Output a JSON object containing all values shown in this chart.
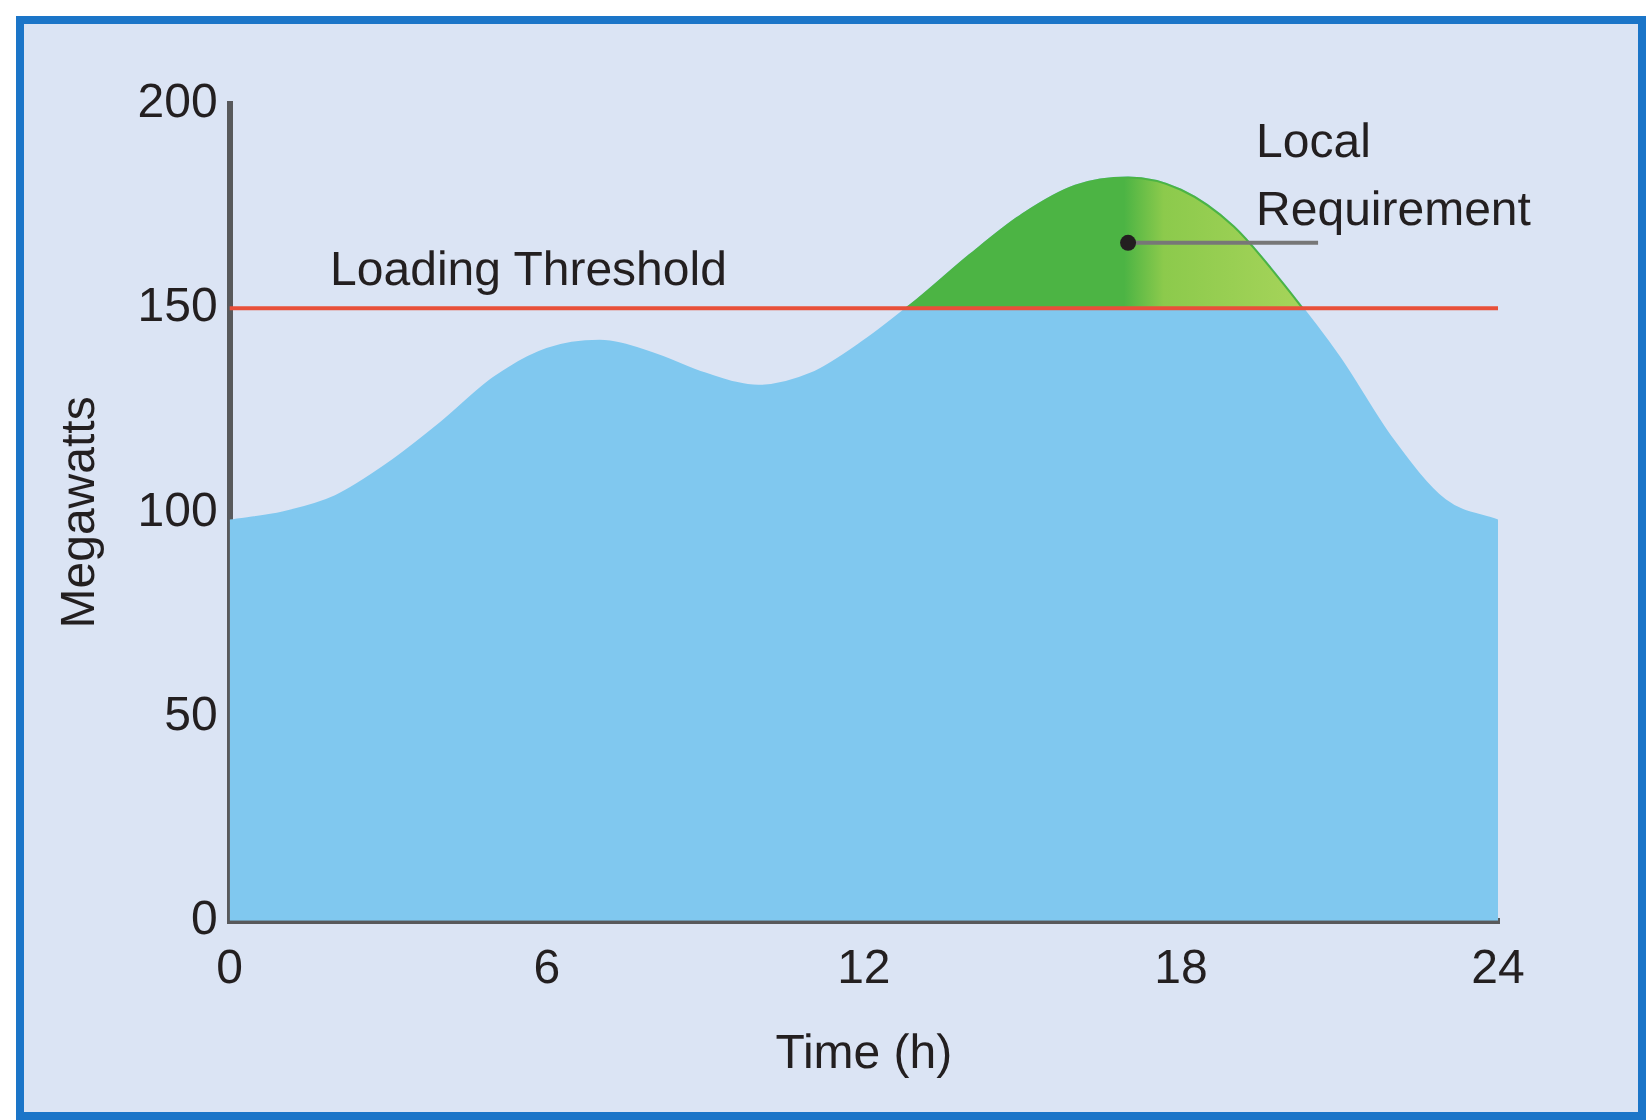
{
  "chart_data": {
    "type": "area",
    "xlabel": "Time (h)",
    "ylabel": "Megawatts",
    "x": [
      0,
      1,
      2,
      3,
      4,
      5,
      6,
      7,
      8,
      9,
      10,
      11,
      12,
      13,
      14,
      15,
      16,
      17,
      18,
      19,
      20,
      21,
      22,
      23,
      24
    ],
    "series": [
      {
        "color": "#80c8ef",
        "values": [
          98,
          100,
          104,
          112,
          122,
          133,
          140,
          142,
          139,
          134,
          131,
          134,
          142,
          152,
          163,
          173,
          180,
          182,
          179,
          170,
          155,
          138,
          118,
          103,
          98
        ]
      },
      {
        "name": "Local Requirement",
        "color": "#4cb444",
        "x": [
          12.8,
          13,
          14,
          15,
          16,
          17,
          18,
          19,
          20,
          20.3
        ],
        "values": [
          150,
          152,
          163,
          173,
          180,
          182,
          179,
          170,
          155,
          150
        ]
      }
    ],
    "xlim": [
      0,
      24
    ],
    "xticks": [
      0,
      6,
      12,
      18,
      24
    ],
    "ylim": [
      0,
      200
    ],
    "yticks": [
      0,
      50,
      100,
      150,
      200
    ],
    "grid": false,
    "legend": false,
    "ref_lines": [
      {
        "axis": "y",
        "value": 150,
        "label": "Loading Threshold",
        "color": "#e8503a"
      }
    ]
  }
}
